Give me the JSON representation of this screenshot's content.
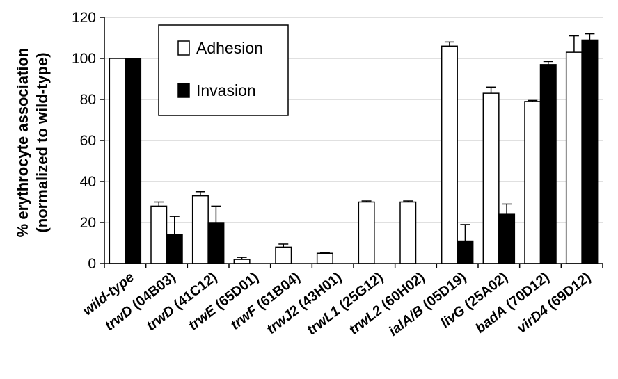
{
  "chart_data": {
    "type": "bar",
    "ylabel_line1": "% erythrocyte association",
    "ylabel_line2": "(normalized to wild-type)",
    "ylim": [
      0,
      120
    ],
    "yticks": [
      "0",
      "20",
      "40",
      "60",
      "80",
      "100",
      "120"
    ],
    "grid": true,
    "legend_position": "top-left",
    "categories": [
      {
        "italic": "wild-type",
        "rest": ""
      },
      {
        "italic": "trwD",
        "rest": " (04B03)"
      },
      {
        "italic": "trwD",
        "rest": " (41C12)"
      },
      {
        "italic": "trwE",
        "rest": " (65D01)"
      },
      {
        "italic": "trwF",
        "rest": " (61B04)"
      },
      {
        "italic": "trwJ2",
        "rest": " (43H01)"
      },
      {
        "italic": "trwL1",
        "rest": " (25G12)"
      },
      {
        "italic": "trwL2",
        "rest": " (60H02)"
      },
      {
        "italic": "ialA/B",
        "rest": " (05D19)"
      },
      {
        "italic": "livG",
        "rest": " (25A02)"
      },
      {
        "italic": "badA",
        "rest": " (70D12)"
      },
      {
        "italic": "virD4",
        "rest": " (69D12)"
      }
    ],
    "series": [
      {
        "name": "Adhesion",
        "color": "#ffffff",
        "values": [
          100,
          28,
          33,
          2,
          8,
          5,
          30,
          30,
          106,
          83,
          79,
          103
        ],
        "errors": [
          0,
          2,
          2,
          1,
          1.5,
          0.5,
          0.5,
          0.5,
          2,
          3,
          0.5,
          8
        ]
      },
      {
        "name": "Invasion",
        "color": "#000000",
        "values": [
          100,
          14,
          20,
          0,
          0,
          0,
          0,
          0,
          11,
          24,
          97,
          109
        ],
        "errors": [
          0,
          9,
          8,
          0,
          0,
          0,
          0,
          0,
          8,
          5,
          1.5,
          3
        ]
      }
    ]
  }
}
